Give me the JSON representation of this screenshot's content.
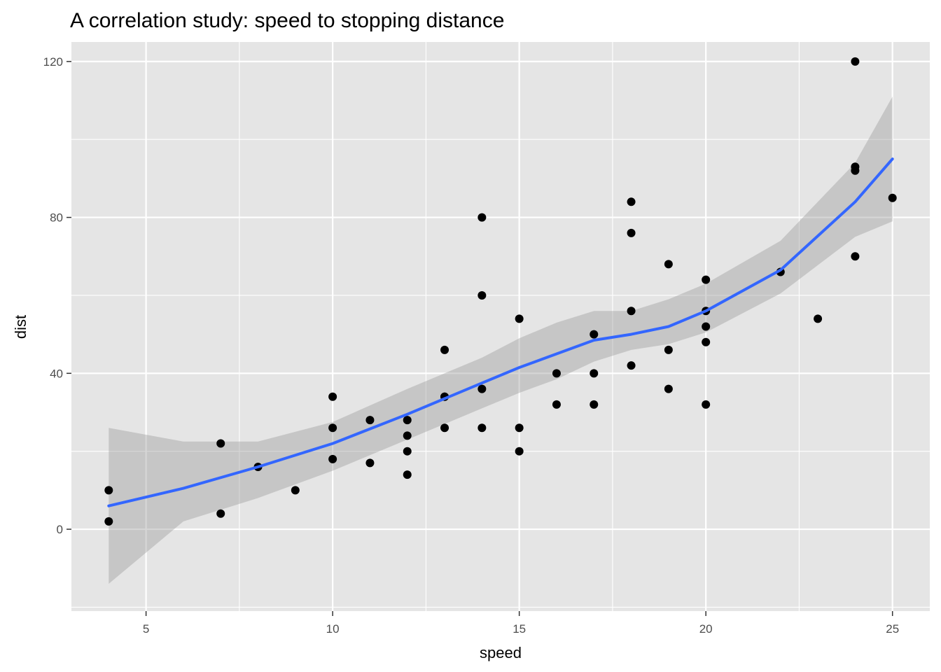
{
  "chart_data": {
    "type": "scatter",
    "title": "A correlation study: speed to stopping distance",
    "xlabel": "speed",
    "ylabel": "dist",
    "xlim": [
      3,
      26
    ],
    "ylim": [
      -21,
      125
    ],
    "x_ticks": [
      5,
      10,
      15,
      20,
      25
    ],
    "y_ticks": [
      0,
      40,
      80,
      120
    ],
    "x_tick_labels": [
      "5",
      "10",
      "15",
      "20",
      "25"
    ],
    "y_tick_labels": [
      "0",
      "40",
      "80",
      "120"
    ],
    "grid": true,
    "legend": "none",
    "colors": {
      "panel_background": "#e5e5e5",
      "grid": "#ffffff",
      "points": "#000000",
      "smooth_line": "#3366ff",
      "confidence_band": "#999999"
    },
    "points": {
      "x": [
        4,
        4,
        7,
        7,
        8,
        9,
        10,
        10,
        10,
        11,
        11,
        12,
        12,
        12,
        12,
        13,
        13,
        13,
        13,
        14,
        14,
        14,
        14,
        15,
        15,
        15,
        16,
        16,
        17,
        17,
        17,
        18,
        18,
        18,
        18,
        19,
        19,
        19,
        20,
        20,
        20,
        20,
        20,
        22,
        23,
        24,
        24,
        24,
        24,
        25
      ],
      "y": [
        2,
        10,
        4,
        22,
        16,
        10,
        18,
        26,
        34,
        17,
        28,
        14,
        20,
        24,
        28,
        26,
        34,
        34,
        46,
        26,
        36,
        60,
        80,
        20,
        26,
        54,
        32,
        40,
        32,
        40,
        50,
        42,
        56,
        76,
        84,
        36,
        46,
        68,
        32,
        48,
        52,
        56,
        64,
        66,
        54,
        70,
        92,
        93,
        120,
        85
      ]
    },
    "smooth": {
      "method": "loess",
      "x": [
        4,
        6,
        8,
        10,
        12,
        14,
        15,
        16,
        17,
        18,
        19,
        20,
        22,
        24,
        25
      ],
      "y": [
        6,
        10.5,
        16,
        22,
        29.5,
        37.5,
        41.5,
        45,
        48.5,
        50,
        52,
        56,
        66.5,
        84,
        95
      ],
      "lower": [
        -14,
        2,
        8,
        15,
        23,
        31,
        35,
        38.5,
        43,
        46,
        47.5,
        50.5,
        60.5,
        75,
        79
      ],
      "upper": [
        26,
        22.5,
        22.5,
        27.5,
        36,
        44,
        49,
        53,
        56,
        56,
        59,
        63,
        74,
        94,
        111
      ]
    }
  }
}
